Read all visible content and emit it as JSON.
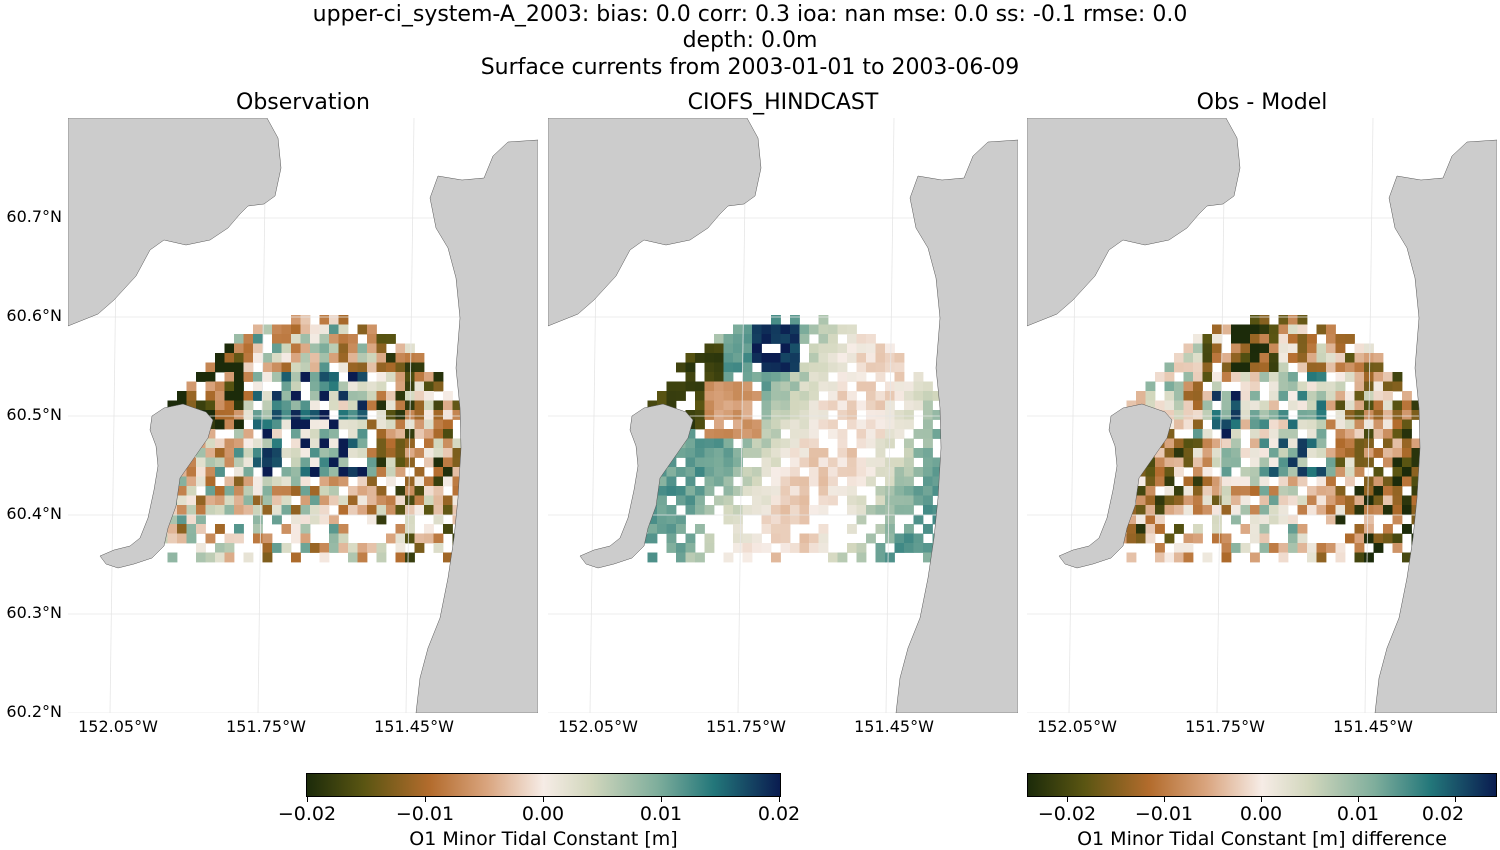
{
  "header": {
    "line1": "upper-ci_system-A_2003: bias: 0.0  corr: 0.3  ioa: nan  mse: 0.0  ss: -0.1  rmse: 0.0",
    "line2": "depth: 0.0m",
    "line3": "Surface currents from 2003-01-01 to 2003-06-09"
  },
  "colors": {
    "land": "#cccccc",
    "gridline": "#e6e6e6",
    "colormap": [
      "#1c2b0a",
      "#5a5512",
      "#b36c2d",
      "#d9a47e",
      "#f6ece6",
      "#d2d7bd",
      "#7fae9c",
      "#23777a",
      "#0a1c50"
    ]
  },
  "chart_data": [
    {
      "type": "heatmap",
      "title": "Observation",
      "xlim": [
        -152.15,
        -151.3
      ],
      "ylim": [
        60.2,
        60.8
      ],
      "x_ticks": [
        "152.05°W",
        "151.75°W",
        "151.45°W"
      ],
      "y_ticks": [
        "60.2°N",
        "60.3°N",
        "60.4°N",
        "60.5°N",
        "60.6°N",
        "60.7°N"
      ],
      "value_range": [
        -0.02,
        0.02
      ]
    },
    {
      "type": "heatmap",
      "title": "CIOFS_HINDCAST",
      "xlim": [
        -152.15,
        -151.3
      ],
      "ylim": [
        60.2,
        60.8
      ],
      "x_ticks": [
        "152.05°W",
        "151.75°W",
        "151.45°W"
      ],
      "value_range": [
        -0.02,
        0.02
      ]
    },
    {
      "type": "heatmap",
      "title": "Obs - Model",
      "xlim": [
        -152.15,
        -151.3
      ],
      "ylim": [
        60.2,
        60.8
      ],
      "x_ticks": [
        "152.05°W",
        "151.75°W",
        "151.45°W"
      ],
      "value_range": [
        -0.025,
        0.025
      ]
    }
  ],
  "colorbars": [
    {
      "label": "O1 Minor Tidal Constant [m]",
      "ticks": [
        "−0.02",
        "−0.01",
        "0.00",
        "0.01",
        "0.02"
      ]
    },
    {
      "label": "O1 Minor Tidal Constant [m] difference",
      "ticks": [
        "−0.02",
        "−0.01",
        "0.00",
        "0.01",
        "0.02"
      ]
    }
  ]
}
